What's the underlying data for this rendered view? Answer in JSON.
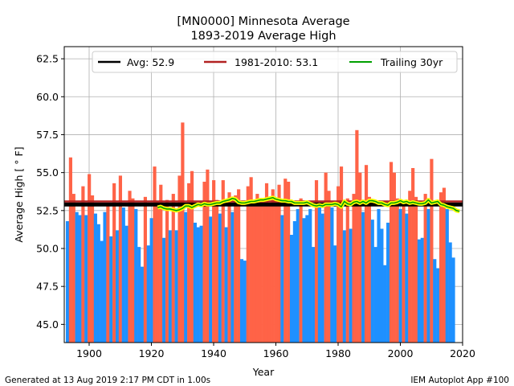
{
  "chart_data": {
    "type": "bar",
    "title": "[MN0000] Minnesota Average",
    "subtitle": "1893-2019 Average High",
    "xlabel": "Year",
    "ylabel": "Average High [°F]",
    "ylabel_display": "Average High [ ° F]",
    "xlim": [
      1892,
      2020
    ],
    "ylim": [
      43.8,
      63.3
    ],
    "xticks": [
      "1900",
      "1920",
      "1940",
      "1960",
      "1980",
      "2000",
      "2020"
    ],
    "yticks": [
      "45.0",
      "47.5",
      "50.0",
      "52.5",
      "55.0",
      "57.5",
      "60.0",
      "62.5"
    ],
    "grid": true,
    "legend_position": "top",
    "above_color": "#ff6347",
    "below_color": "#1e90ff",
    "start_year": 1893,
    "values": [
      51.8,
      56.0,
      53.6,
      52.4,
      52.2,
      54.1,
      52.2,
      54.9,
      53.5,
      52.3,
      51.6,
      50.5,
      52.4,
      53.0,
      50.8,
      54.3,
      51.2,
      54.8,
      52.7,
      51.5,
      53.8,
      53.3,
      52.6,
      50.1,
      48.8,
      53.4,
      50.2,
      52.0,
      55.4,
      53.1,
      54.2,
      50.7,
      53.2,
      51.2,
      53.6,
      51.2,
      54.8,
      58.3,
      52.4,
      54.3,
      55.1,
      51.7,
      51.4,
      51.5,
      54.4,
      55.2,
      52.1,
      54.5,
      53.2,
      52.3,
      54.5,
      51.4,
      53.7,
      52.4,
      53.5,
      53.9,
      49.3,
      49.2,
      54.1,
      54.7,
      53.0,
      53.6,
      53.1,
      53.2,
      54.3,
      53.0,
      53.9,
      53.1,
      54.2,
      52.2,
      54.6,
      54.4,
      50.9,
      51.8,
      52.6,
      53.3,
      52.0,
      52.2,
      52.6,
      50.1,
      54.5,
      52.8,
      52.3,
      55.0,
      53.8,
      52.7,
      50.2,
      54.1,
      55.4,
      51.2,
      53.3,
      51.3,
      53.6,
      57.8,
      55.0,
      52.4,
      55.5,
      53.4,
      51.9,
      50.1,
      52.6,
      51.3,
      48.9,
      51.7,
      55.7,
      55.0,
      53.3,
      52.6,
      53.1,
      52.3,
      53.8,
      55.3,
      53.4,
      50.6,
      50.7,
      53.6,
      52.6,
      55.9,
      49.3,
      48.7,
      53.7,
      54.0,
      52.6,
      50.4,
      49.4
    ],
    "series": [
      {
        "name": "Avg: 52.9",
        "value": 52.9,
        "color": "#000000"
      },
      {
        "name": "1981-2010: 53.1",
        "value": 53.1,
        "color": "#b22222"
      },
      {
        "name": "Trailing 30yr",
        "color": "#00a000",
        "start_year": 1922,
        "values": [
          52.7,
          52.75,
          52.65,
          52.6,
          52.6,
          52.55,
          52.5,
          52.55,
          52.65,
          52.8,
          52.8,
          52.7,
          52.8,
          52.9,
          52.85,
          52.95,
          52.9,
          52.9,
          52.95,
          53.0,
          53.0,
          53.1,
          53.15,
          53.2,
          53.3,
          53.25,
          53.05,
          53.0,
          53.0,
          53.05,
          53.1,
          53.1,
          53.15,
          53.2,
          53.2,
          53.25,
          53.3,
          53.35,
          53.25,
          53.2,
          53.15,
          53.15,
          53.1,
          53.1,
          53.0,
          53.0,
          53.0,
          53.0,
          53.05,
          52.95,
          52.85,
          52.8,
          52.85,
          52.8,
          52.9,
          52.9,
          52.9,
          52.95,
          52.9,
          52.75,
          53.1,
          52.95,
          52.9,
          53.05,
          53.1,
          53.0,
          53.1,
          53.0,
          53.15,
          53.15,
          53.1,
          53.0,
          53.0,
          52.9,
          52.85,
          53.0,
          53.0,
          53.05,
          53.15,
          53.05,
          53.1,
          53.0,
          53.05,
          53.0,
          52.95,
          52.95,
          53.0,
          53.2,
          53.0,
          53.05,
          53.1,
          52.9,
          52.85,
          52.75,
          52.7,
          52.65,
          52.5,
          52.45
        ]
      }
    ]
  },
  "footer": {
    "left": "Generated at 13 Aug 2019 2:17 PM CDT in 1.00s",
    "right": "IEM Autoplot App #100"
  }
}
